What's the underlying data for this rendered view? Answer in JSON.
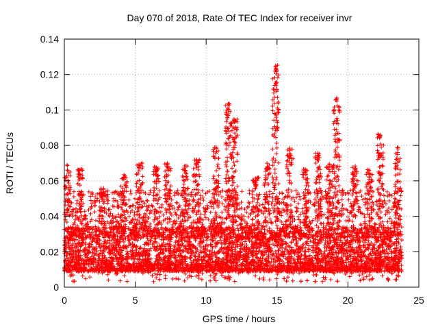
{
  "chart_data": {
    "type": "scatter",
    "title": "Day 070 of 2018, Rate Of TEC Index for receiver invr",
    "xlabel": "GPS time / hours",
    "ylabel": "ROTI / TECUs",
    "xlim": [
      0,
      25
    ],
    "ylim": [
      0,
      0.14
    ],
    "xticks": [
      0,
      5,
      10,
      15,
      20,
      25
    ],
    "xtick_labels": [
      "0",
      "5",
      "10",
      "15",
      "20",
      "25"
    ],
    "yticks": [
      0,
      0.02,
      0.04,
      0.06,
      0.08,
      0.1,
      0.12,
      0.14
    ],
    "ytick_labels": [
      "0",
      "0.02",
      "0.04",
      "0.06",
      "0.08",
      "0.1",
      "0.12",
      "0.14"
    ],
    "grid": true,
    "marker": "+",
    "marker_color": "#ff0000",
    "data_x_range": [
      0,
      23.8
    ],
    "baseline_band": [
      0.005,
      0.045
    ],
    "peaks": [
      {
        "x": 0.2,
        "y": 0.069
      },
      {
        "x": 1.1,
        "y": 0.067
      },
      {
        "x": 2.6,
        "y": 0.056
      },
      {
        "x": 4.2,
        "y": 0.064
      },
      {
        "x": 5.3,
        "y": 0.071
      },
      {
        "x": 6.5,
        "y": 0.068
      },
      {
        "x": 7.3,
        "y": 0.07
      },
      {
        "x": 8.5,
        "y": 0.069
      },
      {
        "x": 9.3,
        "y": 0.072
      },
      {
        "x": 10.7,
        "y": 0.079
      },
      {
        "x": 11.6,
        "y": 0.104
      },
      {
        "x": 12.0,
        "y": 0.096
      },
      {
        "x": 13.5,
        "y": 0.062
      },
      {
        "x": 14.3,
        "y": 0.07
      },
      {
        "x": 14.9,
        "y": 0.126
      },
      {
        "x": 15.9,
        "y": 0.079
      },
      {
        "x": 17.0,
        "y": 0.067
      },
      {
        "x": 17.9,
        "y": 0.076
      },
      {
        "x": 18.7,
        "y": 0.07
      },
      {
        "x": 19.2,
        "y": 0.108
      },
      {
        "x": 20.5,
        "y": 0.069
      },
      {
        "x": 21.5,
        "y": 0.067
      },
      {
        "x": 22.3,
        "y": 0.087
      },
      {
        "x": 23.5,
        "y": 0.079
      }
    ]
  }
}
